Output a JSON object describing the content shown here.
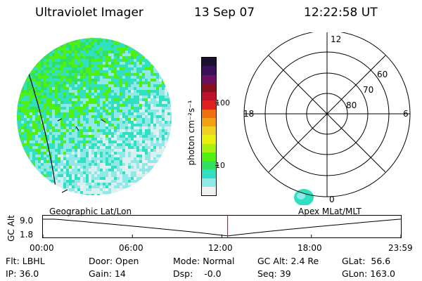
{
  "header": {
    "title": "Ultraviolet Imager",
    "date": "13 Sep 07",
    "time": "12:22:58 UT"
  },
  "colorbar": {
    "label": "photon cm⁻²s⁻¹",
    "ticks": [
      "100",
      "10"
    ],
    "colors": [
      "#1a1030",
      "#3a1058",
      "#6a1060",
      "#8a1020",
      "#c0102a",
      "#e02020",
      "#f07010",
      "#f0a010",
      "#f0d020",
      "#e8f010",
      "#a8f010",
      "#50f010",
      "#30e060",
      "#30e0c0",
      "#90e8e8",
      "#f0f0f0"
    ]
  },
  "polar": {
    "mlt_labels": {
      "top": "12",
      "left": "18",
      "right": "6",
      "bottom": "0"
    },
    "lat_labels": [
      "60",
      "70",
      "80"
    ]
  },
  "timeline": {
    "ylabel": "GC Alt",
    "yticks": [
      "9.0",
      "1.8"
    ],
    "left_label": "Geographic Lat/Lon",
    "right_label": "Apex  MLat/MLT",
    "xticks": [
      "00:00",
      "06:00",
      "12:00",
      "18:00",
      "23:59"
    ],
    "marker_time_hours": 12.38
  },
  "info": {
    "row1": [
      {
        "key": "Flt:",
        "value": "LBHL"
      },
      {
        "key": "Door:",
        "value": "Open"
      },
      {
        "key": "Mode:",
        "value": "Normal"
      },
      {
        "key": "GC Alt:",
        "value": "2.4 Re"
      },
      {
        "key": "GLat:",
        "value": "56.6"
      }
    ],
    "row2": [
      {
        "key": "IP:",
        "value": "36.0"
      },
      {
        "key": "Gain:",
        "value": "14"
      },
      {
        "key": "Dsp:",
        "value": "-0.0"
      },
      {
        "key": "Seq:",
        "value": "39"
      },
      {
        "key": "GLon:",
        "value": "163.0"
      }
    ]
  }
}
